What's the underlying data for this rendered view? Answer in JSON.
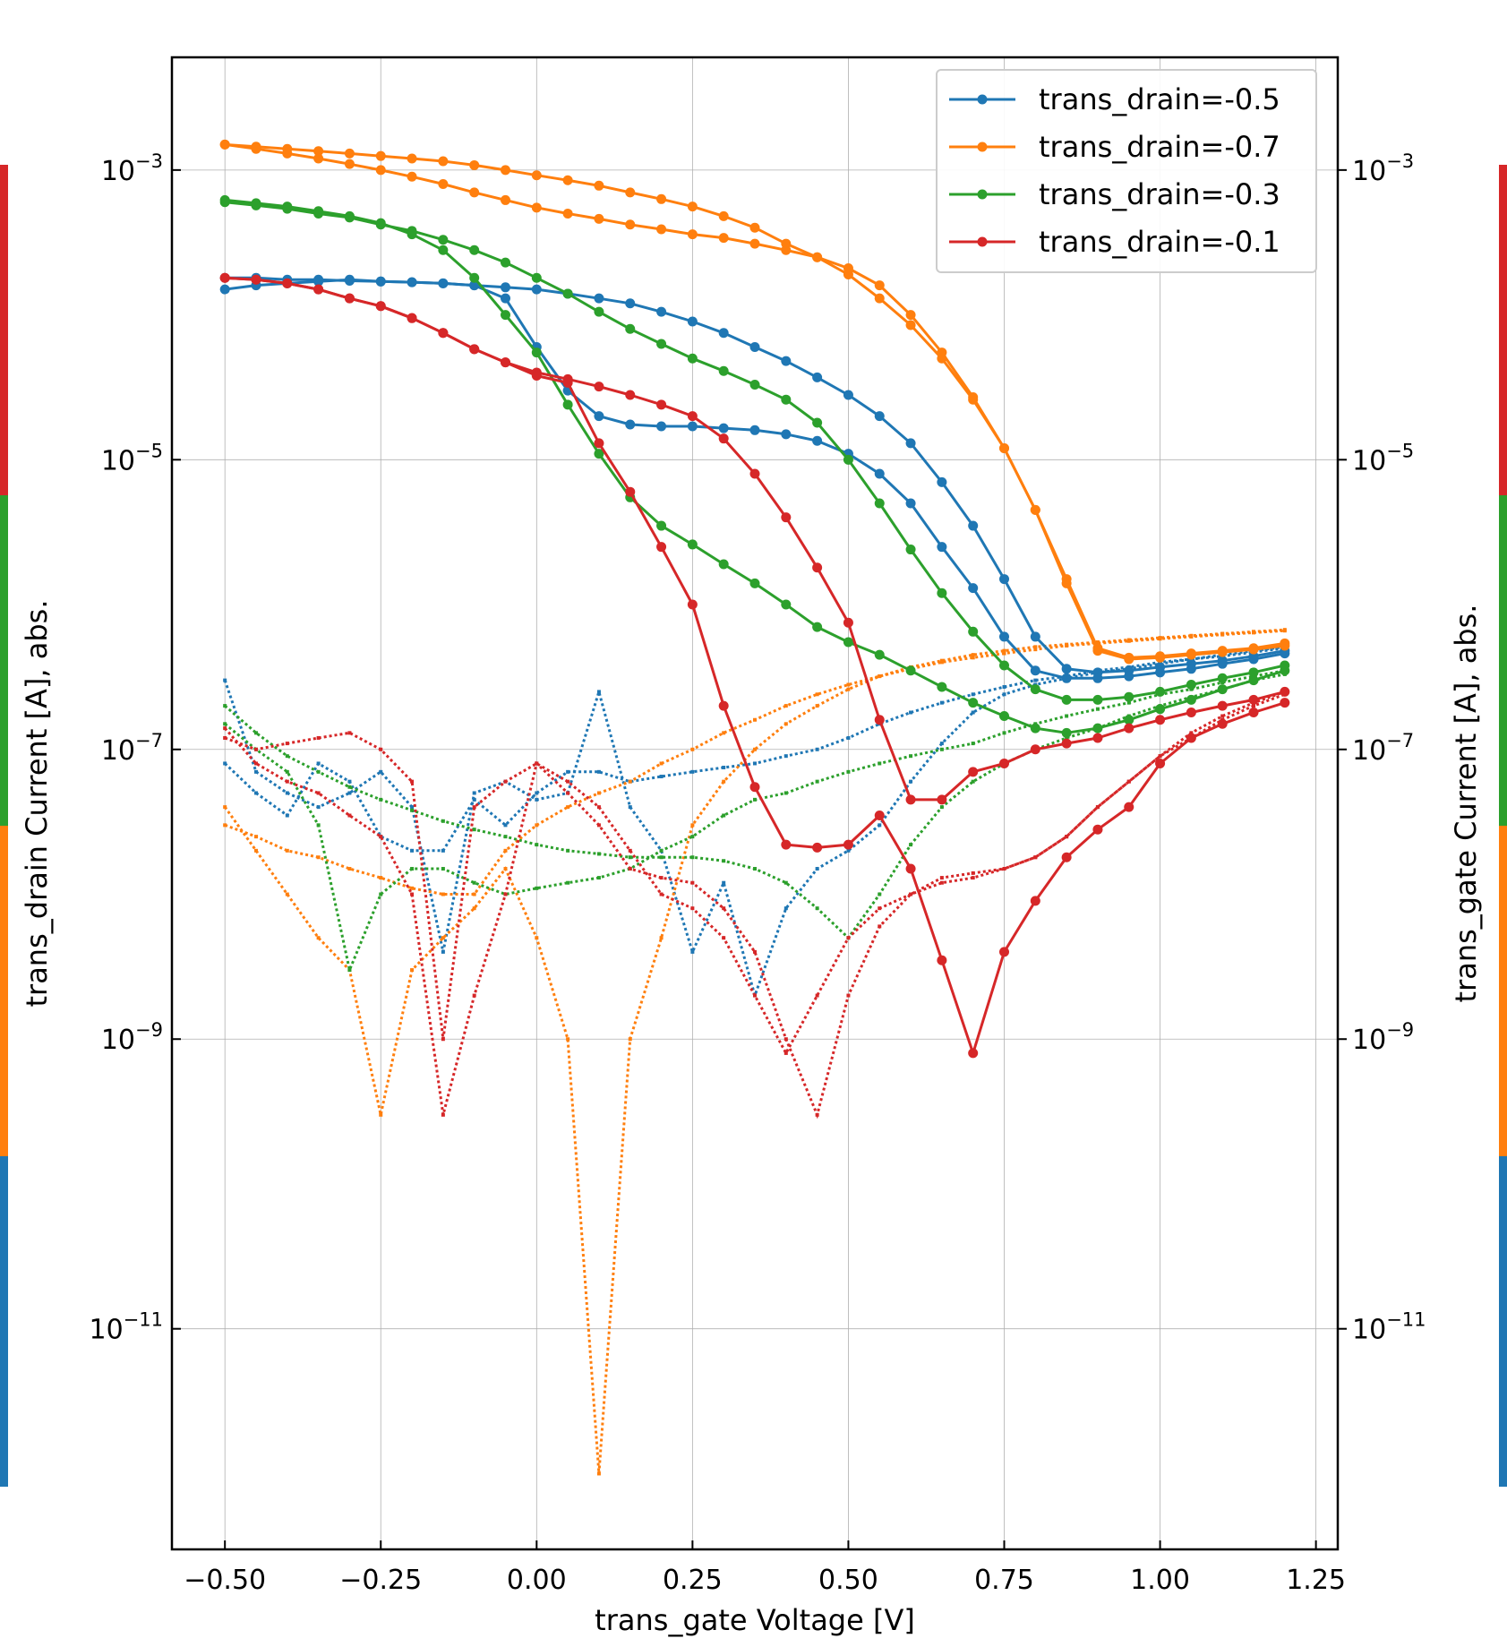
{
  "chart_data": {
    "type": "line",
    "xlabel": "trans_gate Voltage [V]",
    "ylabel_left": "trans_drain Current [A], abs.",
    "ylabel_right": "trans_gate Current [A], abs.",
    "yscale": "log",
    "xlim": [
      -0.585,
      1.285
    ],
    "ylim": [
      3e-13,
      0.006
    ],
    "x_ticks": [
      -0.5,
      -0.25,
      0.0,
      0.25,
      0.5,
      0.75,
      1.0,
      1.25
    ],
    "x_tick_labels": [
      "−0.50",
      "−0.25",
      "0.00",
      "0.25",
      "0.50",
      "0.75",
      "1.00",
      "1.25"
    ],
    "y_ticks": [
      {
        "value": 0.001,
        "base": "10",
        "exp": "−3"
      },
      {
        "value": 1e-05,
        "base": "10",
        "exp": "−5"
      },
      {
        "value": 1e-07,
        "base": "10",
        "exp": "−7"
      },
      {
        "value": 1e-09,
        "base": "10",
        "exp": "−9"
      },
      {
        "value": 1e-11,
        "base": "10",
        "exp": "−11"
      }
    ],
    "grid": true,
    "legend_position": "top-right",
    "legend": [
      {
        "label": "trans_drain=-0.5",
        "color": "#1f77b4"
      },
      {
        "label": "trans_drain=-0.7",
        "color": "#ff7f0e"
      },
      {
        "label": "trans_drain=-0.3",
        "color": "#2ca02c"
      },
      {
        "label": "trans_drain=-0.1",
        "color": "#d62728"
      }
    ],
    "side_bar_order_top_to_bottom": [
      "#d62728",
      "#2ca02c",
      "#ff7f0e",
      "#1f77b4"
    ],
    "x": [
      -0.5,
      -0.45,
      -0.4,
      -0.35,
      -0.3,
      -0.25,
      -0.2,
      -0.15,
      -0.1,
      -0.05,
      0,
      0.05,
      0.1,
      0.15,
      0.2,
      0.25,
      0.3,
      0.35,
      0.4,
      0.45,
      0.5,
      0.55,
      0.6,
      0.65,
      0.7,
      0.75,
      0.8,
      0.85,
      0.9,
      0.95,
      1,
      1.05,
      1.1,
      1.15,
      1.2
    ],
    "series": [
      {
        "name": "trans_drain=-0.5",
        "kind": "drain",
        "color": "#1f77b4",
        "values": [
          0.00015,
          0.00016,
          0.000165,
          0.00017,
          0.000175,
          0.00017,
          0.000168,
          0.000165,
          0.00016,
          0.000155,
          0.00015,
          0.00014,
          0.00013,
          0.00012,
          0.000105,
          9e-05,
          7.5e-05,
          6e-05,
          4.8e-05,
          3.7e-05,
          2.8e-05,
          2e-05,
          1.3e-05,
          7e-06,
          3.5e-06,
          1.5e-06,
          6e-07,
          3.6e-07,
          3.4e-07,
          3.5e-07,
          3.7e-07,
          3.9e-07,
          4.1e-07,
          4.4e-07,
          4.8e-07
        ]
      },
      {
        "name": "trans_drain=-0.5",
        "kind": "drain",
        "color": "#1f77b4",
        "values": [
          0.00018,
          0.00018,
          0.000175,
          0.000175,
          0.000172,
          0.00017,
          0.000168,
          0.000165,
          0.00016,
          0.00013,
          6e-05,
          3e-05,
          2e-05,
          1.75e-05,
          1.7e-05,
          1.7e-05,
          1.65e-05,
          1.6e-05,
          1.5e-05,
          1.35e-05,
          1.1e-05,
          8e-06,
          5e-06,
          2.5e-06,
          1.3e-06,
          6e-07,
          3.5e-07,
          3.1e-07,
          3.1e-07,
          3.2e-07,
          3.4e-07,
          3.6e-07,
          3.9e-07,
          4.2e-07,
          4.6e-07
        ]
      },
      {
        "name": "trans_drain=-0.7",
        "kind": "drain",
        "color": "#ff7f0e",
        "values": [
          0.0015,
          0.00145,
          0.0014,
          0.00135,
          0.0013,
          0.00125,
          0.0012,
          0.00115,
          0.00108,
          0.001,
          0.00092,
          0.00085,
          0.00078,
          0.0007,
          0.00063,
          0.00056,
          0.00048,
          0.0004,
          0.00031,
          0.00025,
          0.00019,
          0.00013,
          8.5e-05,
          5e-05,
          2.6e-05,
          1.2e-05,
          4.5e-06,
          1.5e-06,
          5e-07,
          4.3e-07,
          4.4e-07,
          4.6e-07,
          4.8e-07,
          5e-07,
          5.4e-07
        ]
      },
      {
        "name": "trans_drain=-0.7",
        "kind": "drain",
        "color": "#ff7f0e",
        "values": [
          0.0015,
          0.0014,
          0.0013,
          0.0012,
          0.0011,
          0.001,
          0.0009,
          0.0008,
          0.0007,
          0.00062,
          0.00055,
          0.0005,
          0.00046,
          0.00042,
          0.00039,
          0.00036,
          0.00034,
          0.00031,
          0.00028,
          0.00025,
          0.00021,
          0.00016,
          0.0001,
          5.5e-05,
          2.7e-05,
          1.2e-05,
          4.5e-06,
          1.4e-06,
          4.8e-07,
          4.2e-07,
          4.3e-07,
          4.5e-07,
          4.7e-07,
          4.9e-07,
          5.2e-07
        ]
      },
      {
        "name": "trans_drain=-0.3",
        "kind": "drain",
        "color": "#2ca02c",
        "values": [
          0.0006,
          0.00057,
          0.00054,
          0.0005,
          0.00047,
          0.00042,
          0.00038,
          0.00033,
          0.00028,
          0.00023,
          0.00018,
          0.00014,
          0.000105,
          8e-05,
          6.3e-05,
          5e-05,
          4.1e-05,
          3.3e-05,
          2.6e-05,
          1.8e-05,
          1e-05,
          5e-06,
          2.4e-06,
          1.2e-06,
          6.5e-07,
          3.8e-07,
          2.6e-07,
          2.2e-07,
          2.2e-07,
          2.3e-07,
          2.5e-07,
          2.8e-07,
          3.1e-07,
          3.4e-07,
          3.8e-07
        ]
      },
      {
        "name": "trans_drain=-0.3",
        "kind": "drain",
        "color": "#2ca02c",
        "values": [
          0.00062,
          0.00059,
          0.00056,
          0.00052,
          0.00048,
          0.00043,
          0.00036,
          0.00028,
          0.00018,
          0.0001,
          5.5e-05,
          2.4e-05,
          1.1e-05,
          5.5e-06,
          3.5e-06,
          2.6e-06,
          1.9e-06,
          1.4e-06,
          1e-06,
          7e-07,
          5.5e-07,
          4.5e-07,
          3.5e-07,
          2.7e-07,
          2.1e-07,
          1.7e-07,
          1.4e-07,
          1.3e-07,
          1.4e-07,
          1.6e-07,
          1.9e-07,
          2.2e-07,
          2.6e-07,
          3e-07,
          3.5e-07
        ]
      },
      {
        "name": "trans_drain=-0.1",
        "kind": "drain",
        "color": "#d62728",
        "values": [
          0.00018,
          0.000175,
          0.000165,
          0.00015,
          0.00013,
          0.000115,
          9.5e-05,
          7.5e-05,
          5.8e-05,
          4.7e-05,
          4e-05,
          3.6e-05,
          3.2e-05,
          2.8e-05,
          2.4e-05,
          2e-05,
          1.4e-05,
          8e-06,
          4e-06,
          1.8e-06,
          7.5e-07,
          1.6e-07,
          4.5e-08,
          4.5e-08,
          7e-08,
          8e-08,
          1e-07,
          1.1e-07,
          1.2e-07,
          1.4e-07,
          1.6e-07,
          1.8e-07,
          2e-07,
          2.2e-07,
          2.5e-07
        ]
      },
      {
        "name": "trans_drain=-0.1",
        "kind": "drain",
        "color": "#d62728",
        "values": [
          0.00018,
          0.000175,
          0.000165,
          0.00015,
          0.00013,
          0.000115,
          9.5e-05,
          7.5e-05,
          5.8e-05,
          4.7e-05,
          3.8e-05,
          3.4e-05,
          1.3e-05,
          6e-06,
          2.5e-06,
          1e-06,
          2e-07,
          5.5e-08,
          2.2e-08,
          2.1e-08,
          2.2e-08,
          3.5e-08,
          1.5e-08,
          3.5e-09,
          8e-10,
          4e-09,
          9e-09,
          1.8e-08,
          2.8e-08,
          4e-08,
          8e-08,
          1.2e-07,
          1.5e-07,
          1.8e-07,
          2.1e-07
        ]
      },
      {
        "name": "trans_drain=-0.5",
        "kind": "gate",
        "color": "#1f77b4",
        "values": [
          3e-07,
          7e-08,
          5e-08,
          4e-08,
          5e-08,
          7e-08,
          4e-08,
          4e-09,
          5e-08,
          6e-08,
          4.5e-08,
          5e-08,
          2.5e-07,
          4e-08,
          2e-08,
          4e-09,
          1.2e-08,
          2e-09,
          8e-09,
          1.5e-08,
          2e-08,
          3e-08,
          6e-08,
          1.1e-07,
          1.8e-07,
          2.4e-07,
          2.8e-07,
          3.1e-07,
          3.4e-07,
          3.6e-07,
          3.9e-07,
          4.2e-07,
          4.5e-07,
          4.8e-07,
          5.1e-07
        ]
      },
      {
        "name": "trans_drain=-0.5",
        "kind": "gate",
        "color": "#1f77b4",
        "values": [
          8e-08,
          5e-08,
          3.5e-08,
          8e-08,
          6e-08,
          2.5e-08,
          2e-08,
          2e-08,
          4.5e-08,
          3e-08,
          5e-08,
          7e-08,
          7e-08,
          6e-08,
          6.5e-08,
          7e-08,
          7.5e-08,
          8e-08,
          9e-08,
          1e-07,
          1.2e-07,
          1.5e-07,
          1.8e-07,
          2.1e-07,
          2.4e-07,
          2.7e-07,
          3e-07,
          3.2e-07,
          3.5e-07,
          3.7e-07,
          4e-07,
          4.2e-07,
          4.4e-07,
          4.7e-07,
          5e-07
        ]
      },
      {
        "name": "trans_drain=-0.7",
        "kind": "gate",
        "color": "#ff7f0e",
        "values": [
          4e-08,
          2e-08,
          1e-08,
          5e-09,
          3e-09,
          3e-10,
          3e-09,
          5e-09,
          8e-09,
          1.5e-08,
          5e-09,
          1e-09,
          1e-12,
          1e-09,
          5e-09,
          3e-08,
          6e-08,
          1e-07,
          1.5e-07,
          2e-07,
          2.6e-07,
          3.2e-07,
          3.7e-07,
          4.1e-07,
          4.5e-07,
          4.8e-07,
          5.1e-07,
          5.3e-07,
          5.5e-07,
          5.7e-07,
          5.9e-07,
          6.1e-07,
          6.3e-07,
          6.5e-07,
          6.7e-07
        ]
      },
      {
        "name": "trans_drain=-0.7",
        "kind": "gate",
        "color": "#ff7f0e",
        "values": [
          3e-08,
          2.5e-08,
          2e-08,
          1.8e-08,
          1.5e-08,
          1.3e-08,
          1.1e-08,
          1e-08,
          1e-08,
          2e-08,
          3e-08,
          4e-08,
          5e-08,
          6e-08,
          8e-08,
          1e-07,
          1.3e-07,
          1.6e-07,
          2e-07,
          2.4e-07,
          2.8e-07,
          3.2e-07,
          3.6e-07,
          4e-07,
          4.3e-07,
          4.6e-07,
          4.9e-07,
          5.2e-07,
          5.4e-07,
          5.6e-07,
          5.8e-07,
          6e-07,
          6.2e-07,
          6.4e-07,
          6.6e-07
        ]
      },
      {
        "name": "trans_drain=-0.3",
        "kind": "gate",
        "color": "#2ca02c",
        "values": [
          2e-07,
          1.3e-07,
          9e-08,
          7e-08,
          5.5e-08,
          4.5e-08,
          3.8e-08,
          3.2e-08,
          2.8e-08,
          2.5e-08,
          2.2e-08,
          2e-08,
          1.9e-08,
          1.8e-08,
          1.8e-08,
          1.8e-08,
          1.7e-08,
          1.5e-08,
          1.2e-08,
          8e-09,
          5e-09,
          1e-08,
          2.2e-08,
          4e-08,
          6e-08,
          8e-08,
          1e-07,
          1.2e-07,
          1.4e-07,
          1.7e-07,
          2e-07,
          2.3e-07,
          2.6e-07,
          3e-07,
          3.3e-07
        ]
      },
      {
        "name": "trans_drain=-0.3",
        "kind": "gate",
        "color": "#2ca02c",
        "values": [
          1.5e-07,
          1e-07,
          7e-08,
          3e-08,
          3e-09,
          1e-08,
          1.5e-08,
          1.5e-08,
          1.2e-08,
          1e-08,
          1.1e-08,
          1.2e-08,
          1.3e-08,
          1.5e-08,
          2e-08,
          2.5e-08,
          3.5e-08,
          4.5e-08,
          5e-08,
          6e-08,
          7e-08,
          8e-08,
          9e-08,
          1e-07,
          1.1e-07,
          1.3e-07,
          1.5e-07,
          1.7e-07,
          1.9e-07,
          2.1e-07,
          2.4e-07,
          2.6e-07,
          2.9e-07,
          3.2e-07,
          3.5e-07
        ]
      },
      {
        "name": "trans_drain=-0.1",
        "kind": "gate",
        "color": "#d62728",
        "values": [
          1.2e-07,
          1e-07,
          1.1e-07,
          1.2e-07,
          1.3e-07,
          1e-07,
          6e-08,
          1e-09,
          4e-08,
          6e-08,
          8e-08,
          6e-08,
          4e-08,
          2e-08,
          1e-08,
          8e-09,
          5e-09,
          2e-09,
          8e-10,
          2e-09,
          5e-09,
          8e-09,
          1e-08,
          1.2e-08,
          1.3e-08,
          1.5e-08,
          1.8e-08,
          2.5e-08,
          4e-08,
          6e-08,
          9e-08,
          1.2e-07,
          1.6e-07,
          2e-07,
          2.4e-07
        ]
      },
      {
        "name": "trans_drain=-0.1",
        "kind": "gate",
        "color": "#d62728",
        "values": [
          1.4e-07,
          8e-08,
          6e-08,
          5e-08,
          3.5e-08,
          2.5e-08,
          1e-08,
          3e-10,
          2e-09,
          1e-08,
          8e-08,
          5e-08,
          3e-08,
          1.5e-08,
          1.3e-08,
          1.2e-08,
          8e-09,
          4e-09,
          1e-09,
          3e-10,
          2e-09,
          6e-09,
          1e-08,
          1.3e-08,
          1.4e-08,
          1.5e-08,
          1.8e-08,
          2.5e-08,
          4e-08,
          6e-08,
          9e-08,
          1.3e-07,
          1.7e-07,
          2.1e-07,
          2.5e-07
        ]
      }
    ]
  }
}
